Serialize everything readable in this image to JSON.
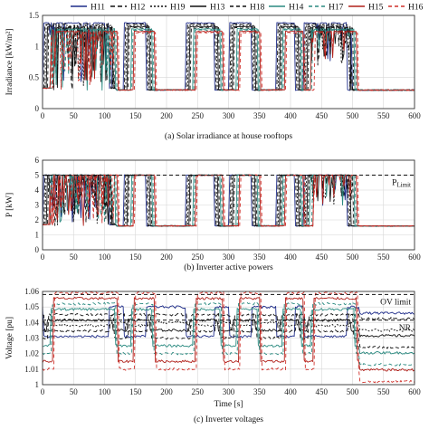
{
  "legend": [
    {
      "name": "H11",
      "color": "#1f2d8a",
      "dash": ""
    },
    {
      "name": "H12",
      "color": "#111111",
      "dash": "5,3"
    },
    {
      "name": "H19",
      "color": "#111111",
      "dash": "2,2"
    },
    {
      "name": "H13",
      "color": "#111111",
      "dash": ""
    },
    {
      "name": "H18",
      "color": "#111111",
      "dash": "4,3"
    },
    {
      "name": "H14",
      "color": "#2a8a80",
      "dash": ""
    },
    {
      "name": "H17",
      "color": "#2a8a80",
      "dash": "4,3"
    },
    {
      "name": "H15",
      "color": "#b0201a",
      "dash": ""
    },
    {
      "name": "H16",
      "color": "#d0302a",
      "dash": "4,3"
    }
  ],
  "chart_data": [
    {
      "type": "line",
      "title": "(a) Solar irradiance at house rooftops",
      "xlabel": "",
      "ylabel": "Irradiance [kW/m²]",
      "xlim": [
        0,
        600
      ],
      "ylim": [
        0,
        1.5
      ],
      "xticks": [
        "0",
        "50",
        "100",
        "150",
        "200",
        "250",
        "300",
        "350",
        "400",
        "450",
        "500",
        "550",
        "600"
      ],
      "yticks": [
        "0",
        "0.5",
        "1",
        "1.5"
      ],
      "yticks_values": [
        0,
        0.5,
        1,
        1.5
      ],
      "grid": true,
      "base": 0.3,
      "peak": 1.3,
      "series_names": [
        "H11",
        "H12",
        "H19",
        "H13",
        "H18",
        "H14",
        "H17",
        "H15",
        "H16"
      ],
      "blocks": [
        [
          10,
          115
        ],
        [
          140,
          175
        ],
        [
          240,
          285
        ],
        [
          310,
          345
        ],
        [
          385,
          415
        ],
        [
          430,
          500
        ]
      ],
      "references": []
    },
    {
      "type": "line",
      "title": "(b) Inverter active powers",
      "xlabel": "",
      "ylabel": "P [kW]",
      "xlim": [
        0,
        600
      ],
      "ylim": [
        0,
        6
      ],
      "xticks": [
        "0",
        "50",
        "100",
        "150",
        "200",
        "250",
        "300",
        "350",
        "400",
        "450",
        "500",
        "550",
        "600"
      ],
      "yticks": [
        "0",
        "1",
        "2",
        "3",
        "4",
        "5",
        "6"
      ],
      "yticks_values": [
        0,
        1,
        2,
        3,
        4,
        5,
        6
      ],
      "grid": true,
      "base": 1.6,
      "peak": 5.0,
      "series_names": [
        "H11",
        "H12",
        "H19",
        "H13",
        "H18",
        "H14",
        "H17",
        "H15",
        "H16"
      ],
      "blocks": [
        [
          10,
          115
        ],
        [
          140,
          175
        ],
        [
          240,
          285
        ],
        [
          310,
          345
        ],
        [
          385,
          415
        ],
        [
          430,
          500
        ]
      ],
      "references": [
        {
          "label": "P",
          "subscript": "Limit",
          "value": 5
        }
      ]
    },
    {
      "type": "line",
      "title": "(c) Inverter voltages",
      "xlabel": "Time [s]",
      "ylabel": "Voltage [pu]",
      "xlim": [
        0,
        600
      ],
      "ylim": [
        1,
        1.06
      ],
      "xticks": [
        "0",
        "50",
        "100",
        "150",
        "200",
        "250",
        "300",
        "350",
        "400",
        "450",
        "500",
        "550",
        "600"
      ],
      "yticks": [
        "1",
        "1.01",
        "1.02",
        "1.03",
        "1.04",
        "1.05",
        "1.06"
      ],
      "yticks_values": [
        1,
        1.01,
        1.02,
        1.03,
        1.04,
        1.05,
        1.06
      ],
      "grid": true,
      "base": 1.03,
      "peak": 1.045,
      "series_names": [
        "H11",
        "H12",
        "H19",
        "H13",
        "H18",
        "H14",
        "H17",
        "H15",
        "H16"
      ],
      "blocks": [
        [
          10,
          115
        ],
        [
          140,
          175
        ],
        [
          240,
          285
        ],
        [
          310,
          345
        ],
        [
          385,
          415
        ],
        [
          430,
          500
        ]
      ],
      "references": [
        {
          "label": "OV limit",
          "subscript": "",
          "value": 1.058
        },
        {
          "label": "NR",
          "subscript": "",
          "value": 1.0415
        }
      ]
    }
  ]
}
